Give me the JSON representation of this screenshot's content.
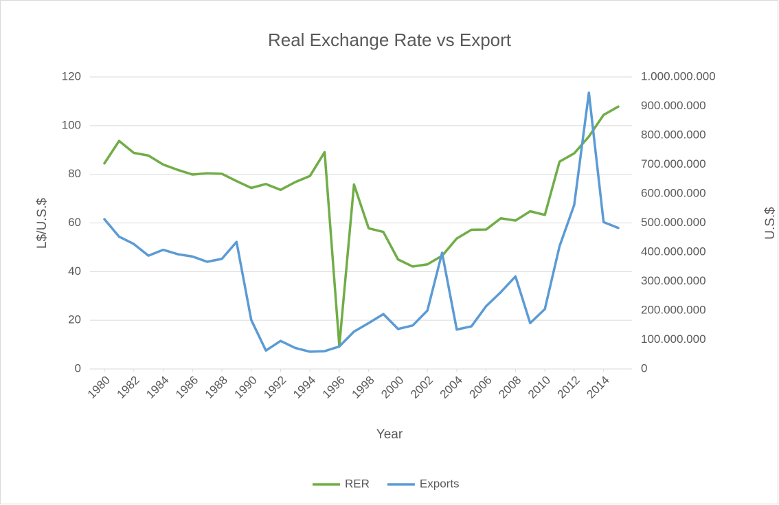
{
  "chart_data": {
    "type": "line",
    "title": "Real Exchange Rate vs Export",
    "x_label": "Year",
    "y_label": "L$/U.S.$",
    "y2_label": "U.S.$",
    "x": [
      1980,
      1981,
      1982,
      1983,
      1984,
      1985,
      1986,
      1987,
      1988,
      1989,
      1990,
      1991,
      1992,
      1993,
      1994,
      1995,
      1996,
      1997,
      1998,
      1999,
      2000,
      2001,
      2002,
      2003,
      2004,
      2005,
      2006,
      2007,
      2008,
      2009,
      2010,
      2011,
      2012,
      2013,
      2014,
      2015
    ],
    "xlim": [
      1980,
      2015
    ],
    "xticks": [
      1980,
      1982,
      1984,
      1986,
      1988,
      1990,
      1992,
      1994,
      1996,
      1998,
      2000,
      2002,
      2004,
      2006,
      2008,
      2010,
      2012,
      2014
    ],
    "ylim": [
      0,
      120
    ],
    "yticks": [
      0,
      20,
      40,
      60,
      80,
      100,
      120
    ],
    "y2lim": [
      0,
      1000000000
    ],
    "y2ticks": [
      0,
      {
        "value": 100000000,
        "label": "100.000.000"
      },
      {
        "value": 200000000,
        "label": "200.000.000"
      },
      {
        "value": 300000000,
        "label": "300.000.000"
      },
      {
        "value": 400000000,
        "label": "400.000.000"
      },
      {
        "value": 500000000,
        "label": "500.000.000"
      },
      {
        "value": 600000000,
        "label": "600.000.000"
      },
      {
        "value": 700000000,
        "label": "700.000.000"
      },
      {
        "value": 800000000,
        "label": "800.000.000"
      },
      {
        "value": 900000000,
        "label": "900.000.000"
      },
      {
        "value": 1000000000,
        "label": "1.000.000.000"
      }
    ],
    "grid": true,
    "legend": "bottom",
    "series": [
      {
        "name": "RER",
        "color": "#70ad47",
        "values": [
          84.5,
          93.7,
          88.8,
          87.7,
          84,
          81.8,
          79.9,
          80.4,
          80.2,
          77.2,
          74.4,
          76,
          73.6,
          76.8,
          79.3,
          89.1,
          9.5,
          75.8,
          57.8,
          56.3,
          45,
          42.1,
          43,
          46.5,
          53.6,
          57.2,
          57.3,
          61.9,
          61,
          64.8,
          63.3,
          85.2,
          88.6,
          95.5,
          104.4,
          107.8
        ]
      },
      {
        "name": "Exports",
        "color": "#5b9bd5",
        "axis": "y2",
        "values": [
          513000000,
          453000000,
          428000000,
          388000000,
          408000000,
          393000000,
          385000000,
          367000000,
          377000000,
          435000000,
          168000000,
          63000000,
          96000000,
          72000000,
          59000000,
          61000000,
          77000000,
          128000000,
          157000000,
          188000000,
          137000000,
          149000000,
          200000000,
          398000000,
          135000000,
          146000000,
          215000000,
          263000000,
          317000000,
          157000000,
          205000000,
          420000000,
          562000000,
          946000000,
          503000000,
          483000000
        ]
      }
    ]
  }
}
